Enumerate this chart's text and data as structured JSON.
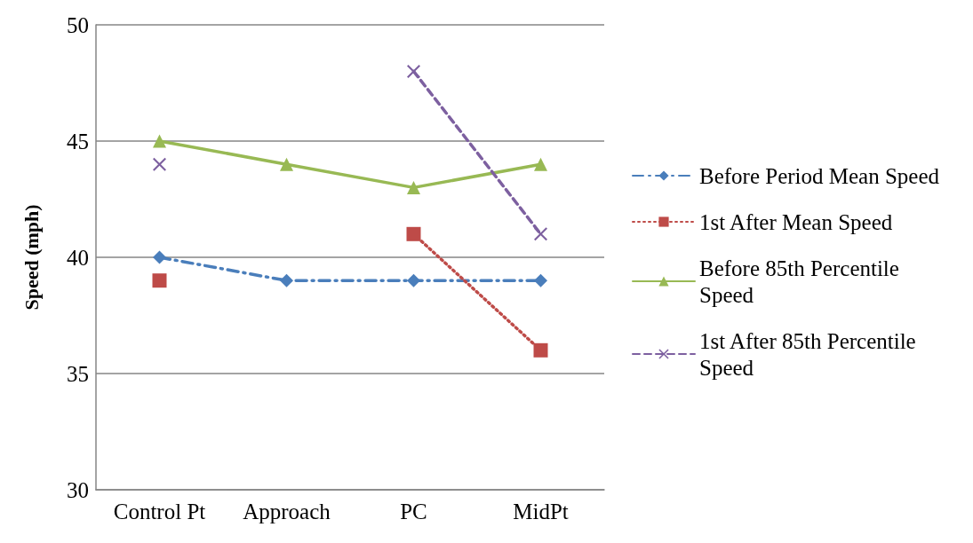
{
  "chart_data": {
    "type": "line",
    "ylabel": "Speed (mph)",
    "categories": [
      "Control Pt",
      "Approach",
      "PC",
      "MidPt"
    ],
    "series": [
      {
        "name": "Before Period Mean Speed",
        "color": "#4a7ebb",
        "values": [
          40,
          39,
          39,
          39
        ],
        "marker": "diamond",
        "line_style": "dashdot"
      },
      {
        "name": "1st After Mean Speed",
        "color": "#be4b48",
        "values": [
          39,
          null,
          41,
          36
        ],
        "marker": "square",
        "line_style": "dotted"
      },
      {
        "name": "Before 85th Percentile Speed",
        "color": "#98b954",
        "values": [
          45,
          44,
          43,
          44
        ],
        "marker": "triangle",
        "line_style": "solid"
      },
      {
        "name": "1st After 85th Percentile Speed",
        "color": "#7d60a0",
        "values": [
          44,
          null,
          48,
          41
        ],
        "marker": "cross",
        "line_style": "dashed"
      }
    ],
    "ylim": [
      30,
      50
    ],
    "yticks": [
      30,
      35,
      40,
      45,
      50
    ],
    "grid": "y",
    "legend": "right"
  }
}
